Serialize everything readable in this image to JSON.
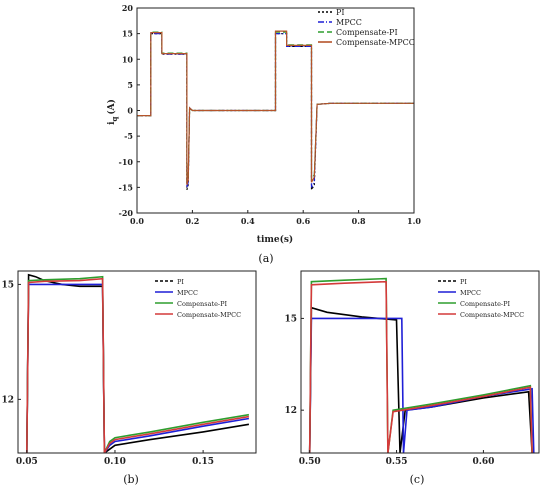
{
  "chart_data": [
    {
      "panel": "(a)",
      "type": "line",
      "xlabel": "time(s)",
      "ylabel": "i_q (A)",
      "ylabel_main": "i",
      "ylabel_sub": "q",
      "ylabel_unit": "(A)",
      "xlim": [
        0.0,
        1.0
      ],
      "ylim": [
        -20,
        20
      ],
      "xticks": [
        "0.0",
        "0.2",
        "0.4",
        "0.6",
        "0.8",
        "1.0"
      ],
      "yticks": [
        "-20",
        "-15",
        "-10",
        "-5",
        "0",
        "5",
        "10",
        "15",
        "20"
      ],
      "legend": [
        "PI",
        "MPCC",
        "Compensate-PI",
        "Compensate-MPCC"
      ],
      "legend_position": "top-right",
      "series": [
        {
          "name": "PI",
          "color": "#000000",
          "dash": "2,2",
          "x": [
            0,
            0.05,
            0.05,
            0.09,
            0.09,
            0.18,
            0.18,
            0.185,
            0.19,
            0.2,
            0.25,
            0.5,
            0.5,
            0.54,
            0.54,
            0.63,
            0.63,
            0.64,
            0.65,
            0.7,
            0.8,
            1.0
          ],
          "y": [
            -1,
            -1,
            15,
            15,
            11,
            11,
            -15.5,
            -14.5,
            0.5,
            0,
            0,
            0,
            15,
            15,
            12.5,
            12.5,
            -15.5,
            -14.5,
            1.2,
            1.4,
            1.4,
            1.4
          ]
        },
        {
          "name": "MPCC",
          "color": "#1f1fd6",
          "dash": "6,2,1,2",
          "x": [
            0,
            0.05,
            0.05,
            0.09,
            0.09,
            0.18,
            0.18,
            0.185,
            0.19,
            0.2,
            0.25,
            0.5,
            0.5,
            0.54,
            0.54,
            0.63,
            0.63,
            0.64,
            0.65,
            0.7,
            0.8,
            1.0
          ],
          "y": [
            -1,
            -1,
            15,
            15,
            11,
            11,
            -15,
            -14,
            0.5,
            0,
            0,
            0,
            15,
            15,
            12.5,
            12.5,
            -15,
            -14,
            1.2,
            1.4,
            1.4,
            1.4
          ]
        },
        {
          "name": "Compensate-PI",
          "color": "#2e9e2e",
          "dash": "6,3",
          "x": [
            0,
            0.05,
            0.05,
            0.09,
            0.09,
            0.18,
            0.18,
            0.185,
            0.19,
            0.2,
            0.25,
            0.5,
            0.5,
            0.54,
            0.54,
            0.63,
            0.63,
            0.64,
            0.65,
            0.7,
            0.8,
            1.0
          ],
          "y": [
            -1,
            -1,
            15.3,
            15.3,
            11.2,
            11.2,
            -14,
            -13,
            0.5,
            0,
            0,
            0,
            15.3,
            15.3,
            12.8,
            12.8,
            -13.5,
            -12.5,
            1.2,
            1.4,
            1.4,
            1.4
          ]
        },
        {
          "name": "Compensate-MPCC",
          "color": "#b5542a",
          "dash": "",
          "x": [
            0,
            0.05,
            0.05,
            0.09,
            0.09,
            0.18,
            0.18,
            0.185,
            0.19,
            0.2,
            0.25,
            0.5,
            0.5,
            0.54,
            0.54,
            0.63,
            0.63,
            0.64,
            0.65,
            0.7,
            0.8,
            1.0
          ],
          "y": [
            -1,
            -1,
            15.2,
            15.2,
            11.1,
            11.1,
            -14.5,
            -13.5,
            0.5,
            0,
            0,
            0,
            15.5,
            15.5,
            12.7,
            12.7,
            -14,
            -13,
            1.2,
            1.4,
            1.4,
            1.4
          ]
        }
      ]
    },
    {
      "panel": "(b)",
      "type": "line",
      "xlim": [
        0.045,
        0.18
      ],
      "ylim": [
        10.6,
        15.35
      ],
      "xticks": [
        "0.05",
        "0.10",
        "0.15"
      ],
      "yticks": [
        "15",
        "12"
      ],
      "legend": [
        "PI",
        "MPCC",
        "Compensate-PI",
        "Compensate-MPCC"
      ],
      "legend_position": "top-right",
      "series": [
        {
          "name": "PI",
          "color": "#000000",
          "x": [
            0.05,
            0.051,
            0.055,
            0.06,
            0.07,
            0.08,
            0.093,
            0.094,
            0.097,
            0.1,
            0.12,
            0.15,
            0.176
          ],
          "y": [
            10.6,
            15.25,
            15.2,
            15.1,
            15.0,
            14.95,
            14.95,
            10.6,
            10.7,
            10.8,
            10.95,
            11.15,
            11.35
          ]
        },
        {
          "name": "MPCC",
          "color": "#1f1fd6",
          "x": [
            0.05,
            0.051,
            0.06,
            0.08,
            0.093,
            0.094,
            0.097,
            0.1,
            0.12,
            0.15,
            0.176
          ],
          "y": [
            10.6,
            15.0,
            15.0,
            15.0,
            15.0,
            10.6,
            10.8,
            10.9,
            11.05,
            11.3,
            11.5
          ]
        },
        {
          "name": "Compensate-PI",
          "color": "#2e9e2e",
          "x": [
            0.05,
            0.051,
            0.06,
            0.08,
            0.093,
            0.094,
            0.097,
            0.1,
            0.12,
            0.15,
            0.176
          ],
          "y": [
            10.6,
            15.1,
            15.12,
            15.15,
            15.2,
            10.6,
            10.9,
            11.0,
            11.15,
            11.4,
            11.6
          ]
        },
        {
          "name": "Compensate-MPCC",
          "color": "#d43a3a",
          "x": [
            0.05,
            0.051,
            0.06,
            0.08,
            0.093,
            0.094,
            0.097,
            0.1,
            0.12,
            0.15,
            0.176
          ],
          "y": [
            10.6,
            15.05,
            15.08,
            15.1,
            15.15,
            10.6,
            10.85,
            10.95,
            11.1,
            11.35,
            11.55
          ]
        }
      ]
    },
    {
      "panel": "(c)",
      "type": "line",
      "xlim": [
        0.495,
        0.632
      ],
      "ylim": [
        10.6,
        16.55
      ],
      "xticks": [
        "0.50",
        "0.55",
        "0.60"
      ],
      "yticks": [
        "15",
        "12"
      ],
      "legend": [
        "PI",
        "MPCC",
        "Compensate-PI",
        "Compensate-MPCC"
      ],
      "legend_position": "top-right",
      "series": [
        {
          "name": "PI",
          "color": "#000000",
          "x": [
            0.5,
            0.501,
            0.51,
            0.53,
            0.55,
            0.552,
            0.555,
            0.57,
            0.6,
            0.626,
            0.628
          ],
          "y": [
            10.6,
            15.35,
            15.2,
            15.05,
            14.95,
            10.6,
            12.0,
            12.1,
            12.4,
            12.6,
            10.6
          ]
        },
        {
          "name": "MPCC",
          "color": "#1f1fd6",
          "x": [
            0.5,
            0.501,
            0.52,
            0.54,
            0.553,
            0.554,
            0.556,
            0.57,
            0.6,
            0.628,
            0.629
          ],
          "y": [
            10.6,
            15.0,
            15.0,
            15.0,
            15.0,
            10.6,
            12.0,
            12.1,
            12.45,
            12.7,
            10.6
          ]
        },
        {
          "name": "Compensate-PI",
          "color": "#2e9e2e",
          "x": [
            0.5,
            0.501,
            0.52,
            0.544,
            0.545,
            0.548,
            0.57,
            0.6,
            0.627,
            0.628
          ],
          "y": [
            10.6,
            16.2,
            16.25,
            16.3,
            10.6,
            12.0,
            12.2,
            12.5,
            12.8,
            10.6
          ]
        },
        {
          "name": "Compensate-MPCC",
          "color": "#d43a3a",
          "x": [
            0.5,
            0.501,
            0.52,
            0.544,
            0.545,
            0.548,
            0.57,
            0.6,
            0.627,
            0.628
          ],
          "y": [
            10.6,
            16.1,
            16.15,
            16.2,
            10.6,
            11.95,
            12.15,
            12.45,
            12.75,
            10.6
          ]
        }
      ]
    }
  ],
  "captions": {
    "a": "(a)",
    "b": "(b)",
    "c": "(c)"
  }
}
